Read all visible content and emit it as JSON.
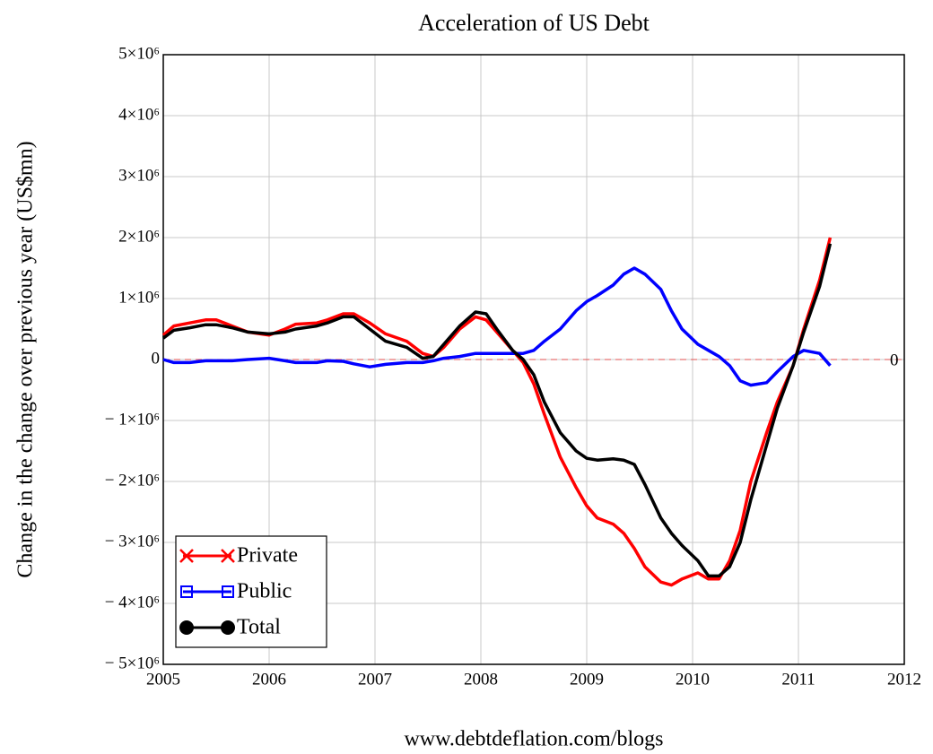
{
  "chart_data": {
    "type": "line",
    "title": "Acceleration of US Debt",
    "y_label": "Change in the change over previous year (US$mn)",
    "x_label": "www.debtdeflation.com/blogs",
    "x": [
      2005,
      2005.1,
      2005.25,
      2005.4,
      2005.5,
      2005.65,
      2005.8,
      2006.0,
      2006.15,
      2006.25,
      2006.45,
      2006.55,
      2006.7,
      2006.8,
      2006.95,
      2007.1,
      2007.3,
      2007.45,
      2007.55,
      2007.65,
      2007.8,
      2007.95,
      2008.05,
      2008.15,
      2008.3,
      2008.4,
      2008.5,
      2008.6,
      2008.75,
      2008.9,
      2009.0,
      2009.1,
      2009.25,
      2009.35,
      2009.45,
      2009.55,
      2009.7,
      2009.8,
      2009.9,
      2010.05,
      2010.15,
      2010.25,
      2010.35,
      2010.45,
      2010.55,
      2010.7,
      2010.8,
      2010.95,
      2011.05,
      2011.2,
      2011.3
    ],
    "series": [
      {
        "name": "Private",
        "color": "#ff0000",
        "marker": "x",
        "values": [
          400000,
          550000,
          600000,
          650000,
          650000,
          550000,
          450000,
          400000,
          500000,
          580000,
          600000,
          650000,
          750000,
          750000,
          600000,
          420000,
          300000,
          100000,
          50000,
          200000,
          500000,
          700000,
          650000,
          450000,
          150000,
          -50000,
          -400000,
          -900000,
          -1600000,
          -2100000,
          -2400000,
          -2600000,
          -2700000,
          -2850000,
          -3100000,
          -3400000,
          -3650000,
          -3700000,
          -3600000,
          -3500000,
          -3600000,
          -3600000,
          -3300000,
          -2800000,
          -2000000,
          -1200000,
          -700000,
          -100000,
          500000,
          1300000,
          2000000
        ]
      },
      {
        "name": "Public",
        "color": "#0000ff",
        "marker": "square",
        "values": [
          0,
          -50000,
          -50000,
          -20000,
          -20000,
          -20000,
          0,
          20000,
          -20000,
          -50000,
          -50000,
          -20000,
          -30000,
          -70000,
          -120000,
          -80000,
          -50000,
          -50000,
          -20000,
          20000,
          50000,
          100000,
          100000,
          100000,
          100000,
          100000,
          150000,
          300000,
          500000,
          800000,
          950000,
          1050000,
          1220000,
          1400000,
          1500000,
          1400000,
          1150000,
          800000,
          500000,
          250000,
          150000,
          50000,
          -100000,
          -350000,
          -420000,
          -380000,
          -200000,
          50000,
          150000,
          100000,
          -100000
        ]
      },
      {
        "name": "Total",
        "color": "#000000",
        "marker": "circle",
        "values": [
          350000,
          480000,
          520000,
          570000,
          570000,
          520000,
          450000,
          420000,
          450000,
          500000,
          550000,
          600000,
          700000,
          700000,
          500000,
          300000,
          200000,
          20000,
          50000,
          250000,
          550000,
          780000,
          750000,
          500000,
          150000,
          0,
          -250000,
          -700000,
          -1200000,
          -1500000,
          -1620000,
          -1650000,
          -1630000,
          -1650000,
          -1720000,
          -2050000,
          -2600000,
          -2850000,
          -3050000,
          -3300000,
          -3550000,
          -3550000,
          -3400000,
          -3000000,
          -2300000,
          -1400000,
          -800000,
          -100000,
          450000,
          1200000,
          1900000
        ]
      }
    ],
    "hline": 0,
    "xlim": [
      2005,
      2012
    ],
    "xticks": [
      2005,
      2006,
      2007,
      2008,
      2009,
      2010,
      2011,
      2012
    ],
    "ylim": [
      -5000000,
      5000000
    ],
    "yticks": [
      {
        "value": -5000000,
        "label": "− 5×10⁶"
      },
      {
        "value": -4000000,
        "label": "− 4×10⁶"
      },
      {
        "value": -3000000,
        "label": "− 3×10⁶"
      },
      {
        "value": -2000000,
        "label": "− 2×10⁶"
      },
      {
        "value": -1000000,
        "label": "− 1×10⁶"
      },
      0,
      {
        "value": 1000000,
        "label": "1×10⁶"
      },
      {
        "value": 2000000,
        "label": "2×10⁶"
      },
      {
        "value": 3000000,
        "label": "3×10⁶"
      },
      {
        "value": 4000000,
        "label": "4×10⁶"
      },
      {
        "value": 5000000,
        "label": "5×10⁶"
      }
    ],
    "grid": true,
    "legend": "lower left"
  }
}
